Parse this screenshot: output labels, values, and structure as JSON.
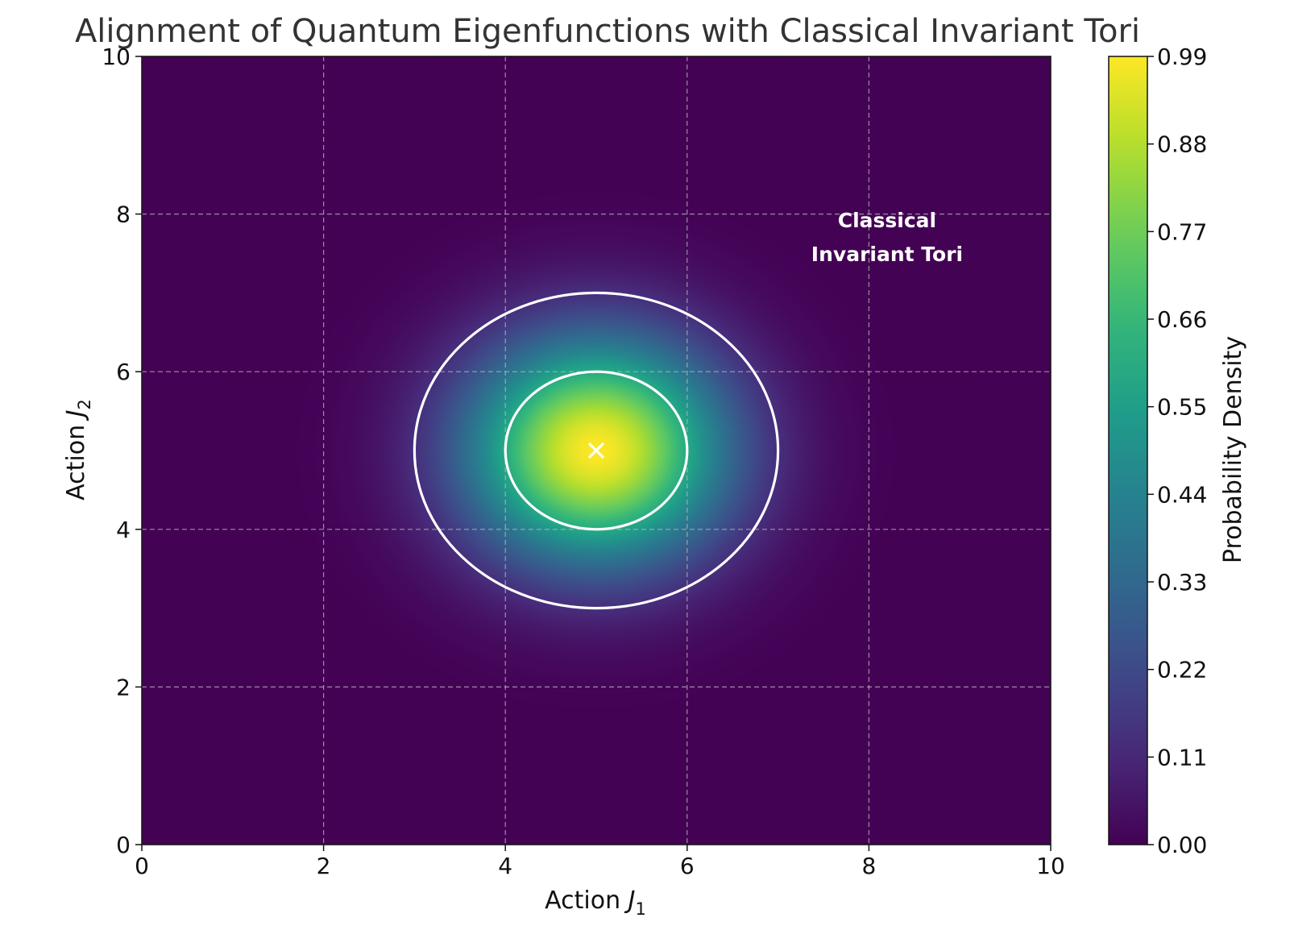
{
  "chart_data": {
    "type": "heatmap",
    "title": "Alignment of Quantum Eigenfunctions with Classical Invariant Tori",
    "xlabel_text": "Action ",
    "xlabel_symbol": "J",
    "xlabel_sub": "1",
    "ylabel_text": "Action ",
    "ylabel_symbol": "J",
    "ylabel_sub": "2",
    "xlim": [
      0,
      10
    ],
    "ylim": [
      0,
      10
    ],
    "x_ticks": [
      "0",
      "2",
      "4",
      "6",
      "8",
      "10"
    ],
    "y_ticks": [
      "0",
      "2",
      "4",
      "6",
      "8",
      "10"
    ],
    "grid": true,
    "density": {
      "function": "gaussian",
      "center": [
        5,
        5
      ],
      "sigma": 1
    },
    "colorbar": {
      "label": "Probability Density",
      "colormap": "viridis",
      "range": [
        0,
        0.99
      ],
      "ticks": [
        "0.00",
        "0.11",
        "0.22",
        "0.33",
        "0.44",
        "0.55",
        "0.66",
        "0.77",
        "0.88",
        "0.99"
      ]
    },
    "tori": [
      {
        "center": [
          5,
          5
        ],
        "radius": 1,
        "color": "#ffffff"
      },
      {
        "center": [
          5,
          5
        ],
        "radius": 2,
        "color": "#ffffff"
      }
    ],
    "marker": {
      "x": 5,
      "y": 5,
      "symbol": "x",
      "color": "#ffffff"
    },
    "annotation": {
      "line1": "Classical",
      "line2": "Invariant Tori",
      "x": 8.2,
      "y": 7.7,
      "color": "#ffffff"
    }
  }
}
